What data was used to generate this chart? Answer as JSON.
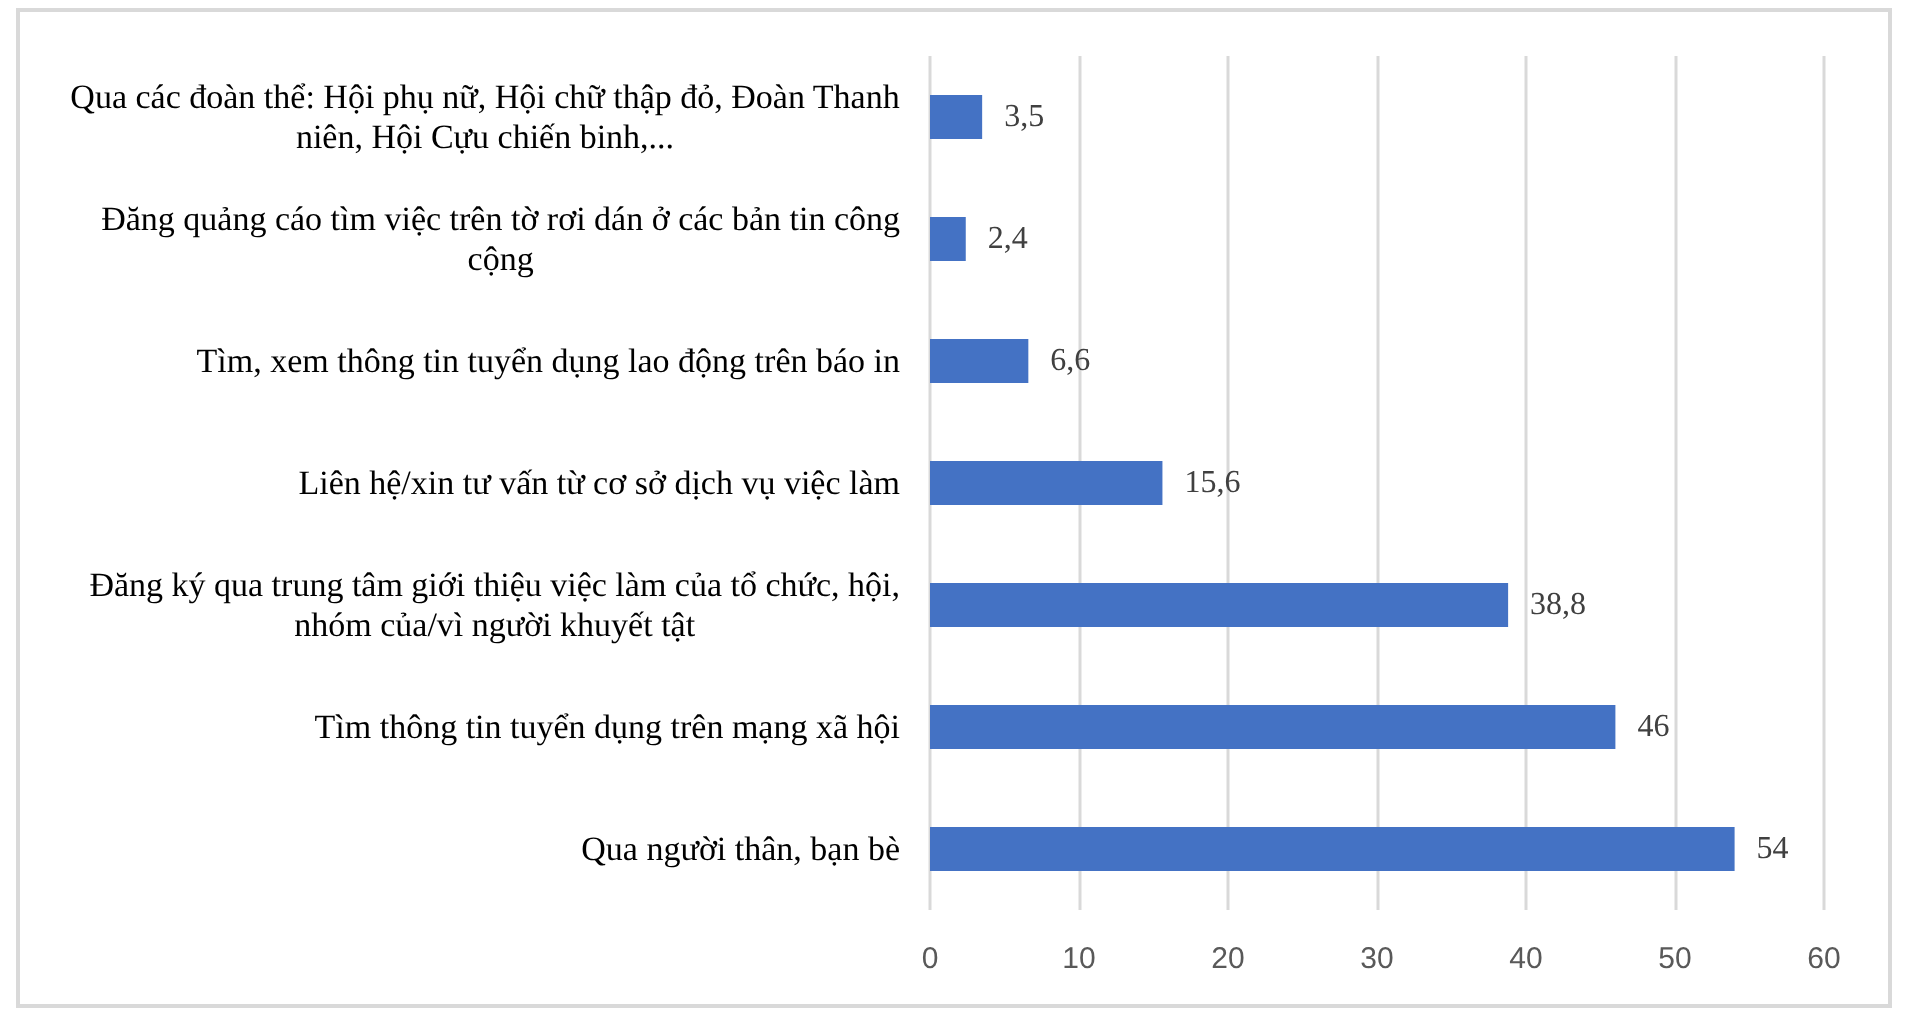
{
  "chart_data": {
    "type": "bar",
    "orientation": "horizontal",
    "categories": [
      "Qua các đoàn thể: Hội phụ nữ, Hội chữ thập đỏ, Đoàn Thanh niên, Hội Cựu chiến binh,...",
      "Đăng quảng cáo tìm việc trên tờ rơi dán ở các bản tin công cộng",
      "Tìm, xem thông tin tuyển dụng lao động trên báo in",
      "Liên hệ/xin tư vấn từ cơ sở dịch vụ việc làm",
      "Đăng ký qua trung tâm giới thiệu việc làm của tổ chức, hội, nhóm của/vì người khuyết tật",
      "Tìm thông tin tuyển dụng trên mạng xã hội",
      "Qua người thân, bạn bè"
    ],
    "values": [
      3.5,
      2.4,
      6.6,
      15.6,
      38.8,
      46,
      54
    ],
    "value_labels": [
      "3,5",
      "2,4",
      "6,6",
      "15,6",
      "38,8",
      "46",
      "54"
    ],
    "color": "#4472c4",
    "xlim": [
      0,
      60
    ],
    "xticks": [
      0,
      10,
      20,
      30,
      40,
      50,
      60
    ],
    "grid": "x"
  }
}
